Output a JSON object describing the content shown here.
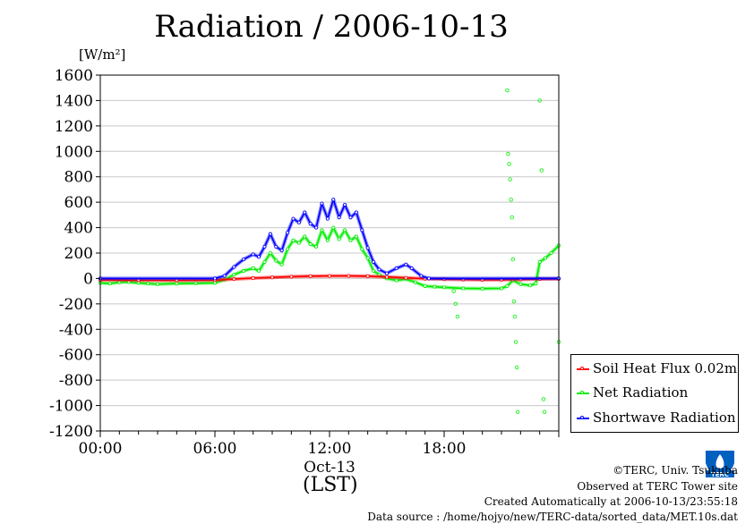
{
  "chart_data": {
    "type": "line",
    "title": "Radiation / 2006-10-13",
    "ylabel": "[W/m²]",
    "xlabel": "(LST)",
    "date_label": "Oct-13",
    "ylim": [
      -1200,
      1600
    ],
    "xlim": [
      0,
      24
    ],
    "yticks": [
      1600,
      1400,
      1200,
      1000,
      800,
      600,
      400,
      200,
      0,
      -200,
      -400,
      -600,
      -800,
      -1000,
      -1200
    ],
    "xticks": [
      {
        "value": 0,
        "label": "00:00"
      },
      {
        "value": 6,
        "label": "06:00"
      },
      {
        "value": 12,
        "label": "12:00"
      },
      {
        "value": 18,
        "label": "18:00"
      }
    ],
    "grid": true,
    "legend_position": "bottom-right",
    "series": [
      {
        "name": "Soil Heat Flux 0.02m",
        "color": "#ff0000",
        "points": [
          [
            0,
            -12
          ],
          [
            2,
            -14
          ],
          [
            4,
            -15
          ],
          [
            6,
            -13
          ],
          [
            7,
            -5
          ],
          [
            8,
            3
          ],
          [
            9,
            8
          ],
          [
            10,
            14
          ],
          [
            11,
            18
          ],
          [
            12,
            20
          ],
          [
            13,
            20
          ],
          [
            14,
            18
          ],
          [
            15,
            12
          ],
          [
            16,
            5
          ],
          [
            17,
            -2
          ],
          [
            18,
            -6
          ],
          [
            19,
            -8
          ],
          [
            20,
            -10
          ],
          [
            21,
            -10
          ],
          [
            22,
            -8
          ],
          [
            23,
            -5
          ],
          [
            24,
            -3
          ]
        ]
      },
      {
        "name": "Net Radiation",
        "color": "#00ee00",
        "points": [
          [
            0,
            -35
          ],
          [
            0.5,
            -40
          ],
          [
            1,
            -30
          ],
          [
            1.5,
            -28
          ],
          [
            2,
            -35
          ],
          [
            2.5,
            -40
          ],
          [
            3,
            -45
          ],
          [
            4,
            -40
          ],
          [
            5,
            -38
          ],
          [
            6,
            -35
          ],
          [
            6.5,
            -10
          ],
          [
            7,
            30
          ],
          [
            7.5,
            60
          ],
          [
            8,
            80
          ],
          [
            8.3,
            60
          ],
          [
            8.6,
            130
          ],
          [
            8.9,
            200
          ],
          [
            9.2,
            140
          ],
          [
            9.5,
            110
          ],
          [
            9.8,
            230
          ],
          [
            10.1,
            300
          ],
          [
            10.4,
            280
          ],
          [
            10.7,
            330
          ],
          [
            11.0,
            270
          ],
          [
            11.3,
            250
          ],
          [
            11.6,
            380
          ],
          [
            11.9,
            300
          ],
          [
            12.2,
            400
          ],
          [
            12.5,
            310
          ],
          [
            12.8,
            380
          ],
          [
            13.1,
            300
          ],
          [
            13.4,
            330
          ],
          [
            13.7,
            230
          ],
          [
            14.0,
            160
          ],
          [
            14.3,
            60
          ],
          [
            14.6,
            30
          ],
          [
            15.0,
            0
          ],
          [
            15.5,
            -15
          ],
          [
            16.0,
            -5
          ],
          [
            16.5,
            -30
          ],
          [
            17.0,
            -60
          ],
          [
            17.5,
            -65
          ],
          [
            18.0,
            -70
          ],
          [
            19.0,
            -78
          ],
          [
            20.0,
            -80
          ],
          [
            21.0,
            -78
          ],
          [
            21.3,
            -60
          ],
          [
            21.6,
            -15
          ],
          [
            22.0,
            -45
          ],
          [
            22.5,
            -55
          ],
          [
            22.8,
            -40
          ],
          [
            23.0,
            130
          ],
          [
            23.3,
            160
          ],
          [
            23.6,
            200
          ],
          [
            24.0,
            260
          ]
        ]
      },
      {
        "name": "Shortwave Radiation",
        "color": "#0000ff",
        "points": [
          [
            0,
            0
          ],
          [
            6,
            0
          ],
          [
            6.5,
            20
          ],
          [
            7,
            90
          ],
          [
            7.5,
            150
          ],
          [
            8,
            190
          ],
          [
            8.3,
            170
          ],
          [
            8.6,
            250
          ],
          [
            8.9,
            350
          ],
          [
            9.2,
            250
          ],
          [
            9.5,
            220
          ],
          [
            9.8,
            360
          ],
          [
            10.1,
            470
          ],
          [
            10.4,
            440
          ],
          [
            10.7,
            520
          ],
          [
            11.0,
            430
          ],
          [
            11.3,
            400
          ],
          [
            11.6,
            590
          ],
          [
            11.9,
            470
          ],
          [
            12.2,
            620
          ],
          [
            12.5,
            480
          ],
          [
            12.8,
            580
          ],
          [
            13.1,
            480
          ],
          [
            13.4,
            520
          ],
          [
            13.7,
            380
          ],
          [
            14.0,
            240
          ],
          [
            14.3,
            130
          ],
          [
            14.6,
            70
          ],
          [
            15.0,
            40
          ],
          [
            15.5,
            80
          ],
          [
            16.0,
            110
          ],
          [
            16.3,
            80
          ],
          [
            16.8,
            20
          ],
          [
            17.2,
            0
          ],
          [
            24,
            0
          ]
        ]
      }
    ],
    "outliers": [
      [
        18.5,
        -100
      ],
      [
        18.6,
        -200
      ],
      [
        18.7,
        -300
      ],
      [
        21.3,
        1480
      ],
      [
        21.35,
        980
      ],
      [
        21.4,
        900
      ],
      [
        21.45,
        780
      ],
      [
        21.5,
        620
      ],
      [
        21.55,
        480
      ],
      [
        21.6,
        150
      ],
      [
        21.65,
        -180
      ],
      [
        21.7,
        -300
      ],
      [
        21.75,
        -500
      ],
      [
        21.8,
        -700
      ],
      [
        21.85,
        -1050
      ],
      [
        23.0,
        1400
      ],
      [
        23.1,
        850
      ],
      [
        23.2,
        -950
      ],
      [
        23.25,
        -1050
      ],
      [
        24.0,
        -500
      ]
    ]
  },
  "legend": {
    "items": [
      {
        "label": "Soil Heat Flux 0.02m",
        "color": "#ff0000"
      },
      {
        "label": "Net Radiation",
        "color": "#00ee00"
      },
      {
        "label": "Shortwave Radiation",
        "color": "#0000ff"
      }
    ]
  },
  "footer": {
    "copyright": "©TERC, Univ. Tsukuba",
    "observed": "Observed at TERC Tower site",
    "created": "Created Automatically at 2006-10-13/23:55:18",
    "source": "Data source : /home/hojyo/new/TERC-data/sorted_data/MET.10s.dat"
  },
  "logo": {
    "text": "TERC",
    "color": "#0060c0"
  }
}
